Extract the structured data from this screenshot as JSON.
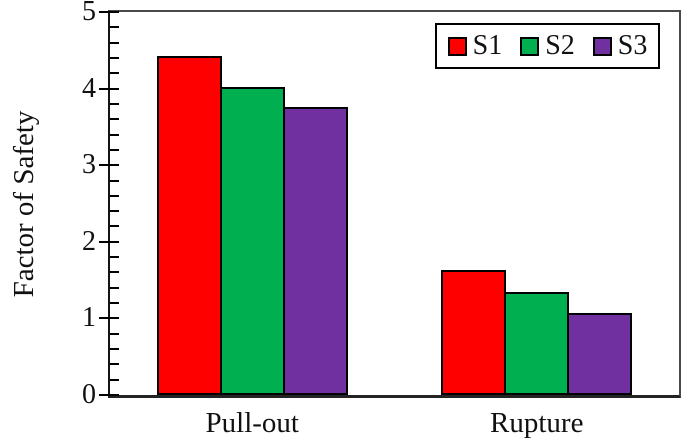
{
  "chart_data": {
    "type": "bar",
    "ylabel": "Factor of Safety",
    "xlabel": "",
    "categories": [
      "Pull-out",
      "Rupture"
    ],
    "series": [
      {
        "name": "S1",
        "color": "#FF0000",
        "values": [
          4.42,
          1.63
        ]
      },
      {
        "name": "S2",
        "color": "#00B050",
        "values": [
          4.02,
          1.35
        ]
      },
      {
        "name": "S3",
        "color": "#7030A0",
        "values": [
          3.76,
          1.07
        ]
      }
    ],
    "ylim": [
      0,
      5
    ],
    "ytick_step": 1,
    "y_minor_tick_step": 0.2,
    "legend_position": "top-right",
    "grid": false,
    "bar_border_color": "#000000",
    "axis_color": "#141414"
  }
}
